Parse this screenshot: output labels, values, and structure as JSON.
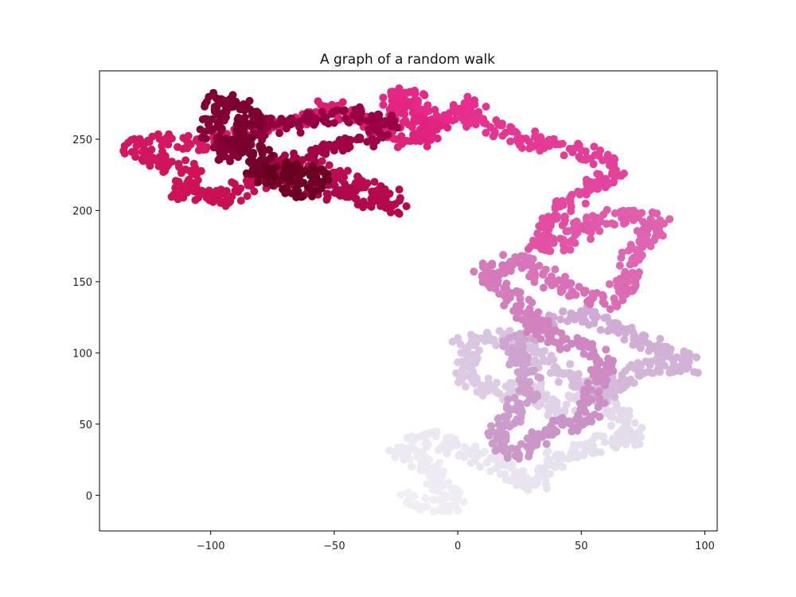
{
  "chart_data": {
    "type": "scatter",
    "title": "A graph of a random walk",
    "xlabel": "",
    "ylabel": "",
    "xlim": [
      -145,
      105
    ],
    "ylim": [
      -25,
      298
    ],
    "xticks": [
      -100,
      -50,
      0,
      50,
      100
    ],
    "yticks": [
      0,
      50,
      100,
      150,
      200,
      250
    ],
    "grid": false,
    "colormap": "PuRd",
    "colormap_stops": [
      "#f7f4f9",
      "#e7e1ef",
      "#d4b9da",
      "#c994c7",
      "#df65b0",
      "#e7298a",
      "#ce1256",
      "#980043",
      "#67001f"
    ],
    "marker": "circle",
    "walk_path": [
      [
        -22,
        -3
      ],
      [
        -12,
        -8
      ],
      [
        0,
        -5
      ],
      [
        -8,
        10
      ],
      [
        -12,
        22
      ],
      [
        -25,
        32
      ],
      [
        -10,
        40
      ],
      [
        5,
        30
      ],
      [
        20,
        18
      ],
      [
        32,
        8
      ],
      [
        40,
        28
      ],
      [
        60,
        38
      ],
      [
        72,
        40
      ],
      [
        62,
        60
      ],
      [
        50,
        75
      ],
      [
        40,
        58
      ],
      [
        30,
        78
      ],
      [
        18,
        72
      ],
      [
        5,
        80
      ],
      [
        2,
        105
      ],
      [
        18,
        112
      ],
      [
        32,
        100
      ],
      [
        45,
        82
      ],
      [
        60,
        70
      ],
      [
        70,
        88
      ],
      [
        85,
        92
      ],
      [
        95,
        90
      ],
      [
        82,
        104
      ],
      [
        65,
        115
      ],
      [
        50,
        128
      ],
      [
        35,
        120
      ],
      [
        22,
        104
      ],
      [
        30,
        75
      ],
      [
        22,
        58
      ],
      [
        15,
        40
      ],
      [
        25,
        28
      ],
      [
        32,
        40
      ],
      [
        40,
        48
      ],
      [
        52,
        52
      ],
      [
        55,
        70
      ],
      [
        60,
        95
      ],
      [
        48,
        105
      ],
      [
        35,
        112
      ],
      [
        28,
        130
      ],
      [
        18,
        142
      ],
      [
        10,
        158
      ],
      [
        25,
        165
      ],
      [
        38,
        150
      ],
      [
        50,
        140
      ],
      [
        60,
        135
      ],
      [
        68,
        148
      ],
      [
        70,
        165
      ],
      [
        75,
        178
      ],
      [
        82,
        190
      ],
      [
        68,
        198
      ],
      [
        55,
        192
      ],
      [
        45,
        180
      ],
      [
        32,
        172
      ],
      [
        40,
        200
      ],
      [
        48,
        208
      ],
      [
        60,
        222
      ],
      [
        65,
        230
      ],
      [
        52,
        240
      ],
      [
        40,
        245
      ],
      [
        28,
        250
      ],
      [
        15,
        258
      ],
      [
        5,
        262
      ],
      [
        8,
        275
      ],
      [
        0,
        268
      ],
      [
        -10,
        262
      ],
      [
        -20,
        282
      ],
      [
        -28,
        278
      ],
      [
        -18,
        262
      ],
      [
        -8,
        255
      ],
      [
        -20,
        248
      ],
      [
        -32,
        258
      ],
      [
        -42,
        268
      ],
      [
        -55,
        272
      ],
      [
        -65,
        262
      ],
      [
        -78,
        258
      ],
      [
        -88,
        252
      ],
      [
        -98,
        245
      ],
      [
        -108,
        248
      ],
      [
        -120,
        250
      ],
      [
        -132,
        243
      ],
      [
        -120,
        235
      ],
      [
        -108,
        228
      ],
      [
        -112,
        212
      ],
      [
        -100,
        212
      ],
      [
        -95,
        205
      ],
      [
        -85,
        218
      ],
      [
        -72,
        225
      ],
      [
        -58,
        232
      ],
      [
        -48,
        222
      ],
      [
        -38,
        218
      ],
      [
        -28,
        210
      ],
      [
        -25,
        202
      ],
      [
        -40,
        210
      ],
      [
        -55,
        215
      ],
      [
        -68,
        222
      ],
      [
        -75,
        232
      ],
      [
        -60,
        238
      ],
      [
        -48,
        245
      ],
      [
        -35,
        252
      ],
      [
        -28,
        262
      ],
      [
        -40,
        268
      ],
      [
        -55,
        265
      ],
      [
        -70,
        258
      ],
      [
        -78,
        262
      ],
      [
        -85,
        248
      ],
      [
        -95,
        238
      ],
      [
        -100,
        255
      ],
      [
        -95,
        272
      ],
      [
        -100,
        278
      ],
      [
        -88,
        275
      ],
      [
        -82,
        265
      ],
      [
        -90,
        248
      ],
      [
        -78,
        238
      ],
      [
        -82,
        225
      ],
      [
        -75,
        222
      ],
      [
        -62,
        212
      ],
      [
        -55,
        222
      ],
      [
        -65,
        230
      ],
      [
        -78,
        225
      ]
    ]
  }
}
